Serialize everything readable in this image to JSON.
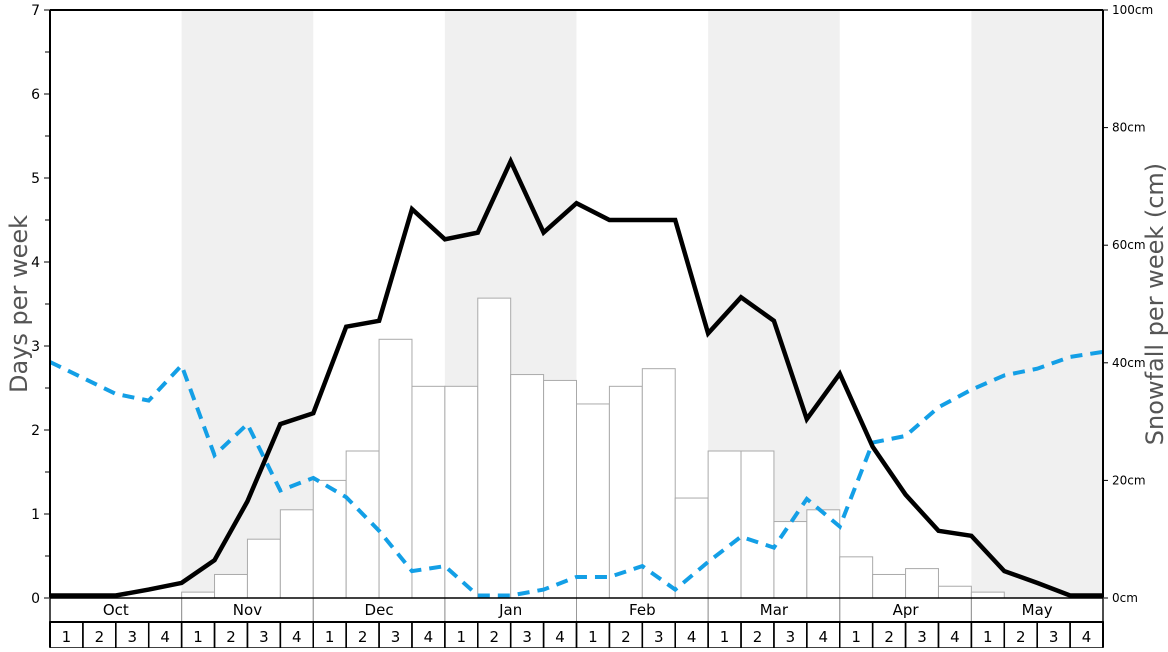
{
  "chart_data": {
    "type": "bar+line",
    "ylabel_left": "Days per week",
    "ylabel_right": "Snowfall per week (cm)",
    "ylim_left": [
      0,
      7
    ],
    "ylim_right": [
      0,
      100
    ],
    "yticks_left": [
      "0",
      "1",
      "2",
      "3",
      "4",
      "5",
      "6",
      "7"
    ],
    "yticks_right": [
      "0cm",
      "20cm",
      "40cm",
      "60cm",
      "80cm",
      "100cm"
    ],
    "months": [
      "Oct",
      "Nov",
      "Dec",
      "Jan",
      "Feb",
      "Mar",
      "Apr",
      "May"
    ],
    "weeks": [
      "1",
      "2",
      "3",
      "4"
    ],
    "shaded_months": [
      "Nov",
      "Jan",
      "Mar",
      "May"
    ],
    "colors": {
      "bars_fill": "#ffffff",
      "bars_stroke": "#aaaaaa",
      "line_solid": "#000000",
      "line_dashed": "#139fe6",
      "shade": "#f0f0f0"
    },
    "snowfall_bars_cm": [
      0,
      0,
      0,
      0,
      1,
      4,
      10,
      15,
      20,
      25,
      44,
      36,
      36,
      51,
      38,
      37,
      33,
      36,
      39,
      17,
      25,
      25,
      13,
      15,
      7,
      4,
      5,
      2,
      1,
      0,
      0,
      0
    ],
    "solid_line_days": [
      0.03,
      0.03,
      0.03,
      0.1,
      0.18,
      0.45,
      1.15,
      2.07,
      2.2,
      3.23,
      3.3,
      4.63,
      4.27,
      4.35,
      5.2,
      4.35,
      4.7,
      4.5,
      4.5,
      4.5,
      3.15,
      3.58,
      3.3,
      2.13,
      2.67,
      1.8,
      1.23,
      0.8,
      0.74,
      0.32,
      0.18,
      0.03,
      0.03
    ],
    "dashed_line_days": [
      2.81,
      2.62,
      2.43,
      2.35,
      2.77,
      1.7,
      2.07,
      1.28,
      1.43,
      1.2,
      0.8,
      0.32,
      0.38,
      0.03,
      0.03,
      0.1,
      0.25,
      0.25,
      0.38,
      0.1,
      0.43,
      0.73,
      0.6,
      1.18,
      0.85,
      1.85,
      1.93,
      2.27,
      2.48,
      2.65,
      2.73,
      2.87,
      2.93
    ],
    "grid": false
  }
}
